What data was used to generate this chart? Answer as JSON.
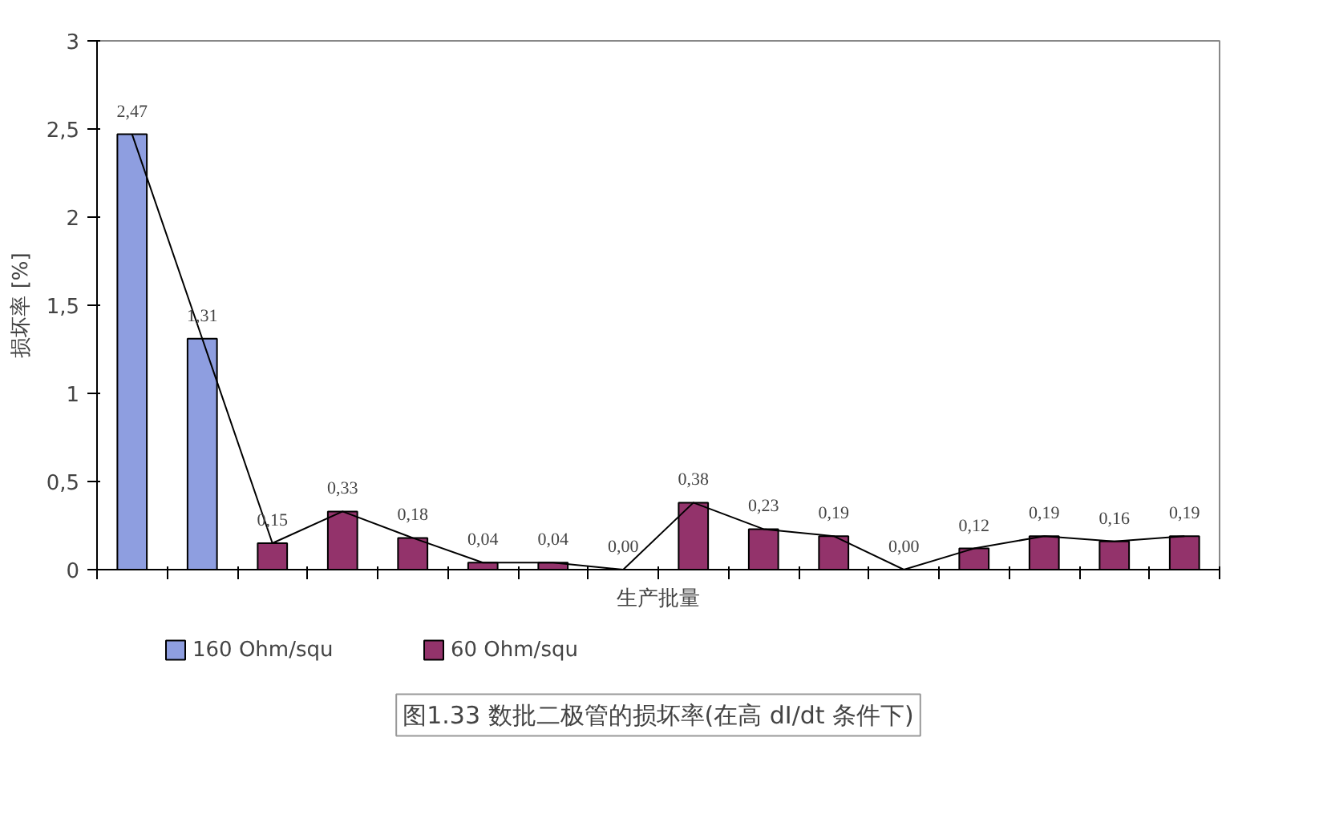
{
  "chart_data": {
    "type": "bar",
    "xlabel": "生产批量",
    "ylabel": "损坏率 [%]",
    "categories": [
      null,
      null,
      null,
      null,
      null,
      null,
      null,
      null,
      null,
      null,
      null,
      null,
      null,
      null,
      null,
      null
    ],
    "series": [
      {
        "name": "160 Ohm/squ",
        "color": "#8e9ee0",
        "values": [
          2.47,
          1.31,
          null,
          null,
          null,
          null,
          null,
          null,
          null,
          null,
          null,
          null,
          null,
          null,
          null,
          null
        ],
        "value_labels": [
          "2,47",
          "1,31",
          null,
          null,
          null,
          null,
          null,
          null,
          null,
          null,
          null,
          null,
          null,
          null,
          null,
          null
        ]
      },
      {
        "name": "60 Ohm/squ",
        "color": "#93336b",
        "values": [
          null,
          null,
          0.15,
          0.33,
          0.18,
          0.04,
          0.04,
          0.0,
          0.38,
          0.23,
          0.19,
          0.0,
          0.12,
          0.19,
          0.16,
          0.19
        ],
        "value_labels": [
          null,
          null,
          "0,15",
          "0,33",
          "0,18",
          "0,04",
          "0,04",
          "0,00",
          "0,38",
          "0,23",
          "0,19",
          "0,00",
          "0,12",
          "0,19",
          "0,16",
          "0,19"
        ]
      },
      {
        "type": "line",
        "color": "#000000",
        "values": [
          2.47,
          1.31,
          0.15,
          0.33,
          0.18,
          0.04,
          0.04,
          0.0,
          0.38,
          0.23,
          0.19,
          0.0,
          0.12,
          0.19,
          0.16,
          0.19
        ]
      }
    ],
    "ylim": [
      0,
      3
    ],
    "yticks": [
      0,
      {
        "value": 0.5,
        "label": "0,5"
      },
      1,
      {
        "value": 1.5,
        "label": "1,5"
      },
      2,
      {
        "value": 2.5,
        "label": "2,5"
      },
      3
    ],
    "tick_labels": "y",
    "grid": false,
    "legend": "bottom",
    "marker": "none",
    "line_style": "solid",
    "annotations": [
      "图1.33 数批二极管的损坏率(在高 dI/dt 条件下)"
    ]
  }
}
